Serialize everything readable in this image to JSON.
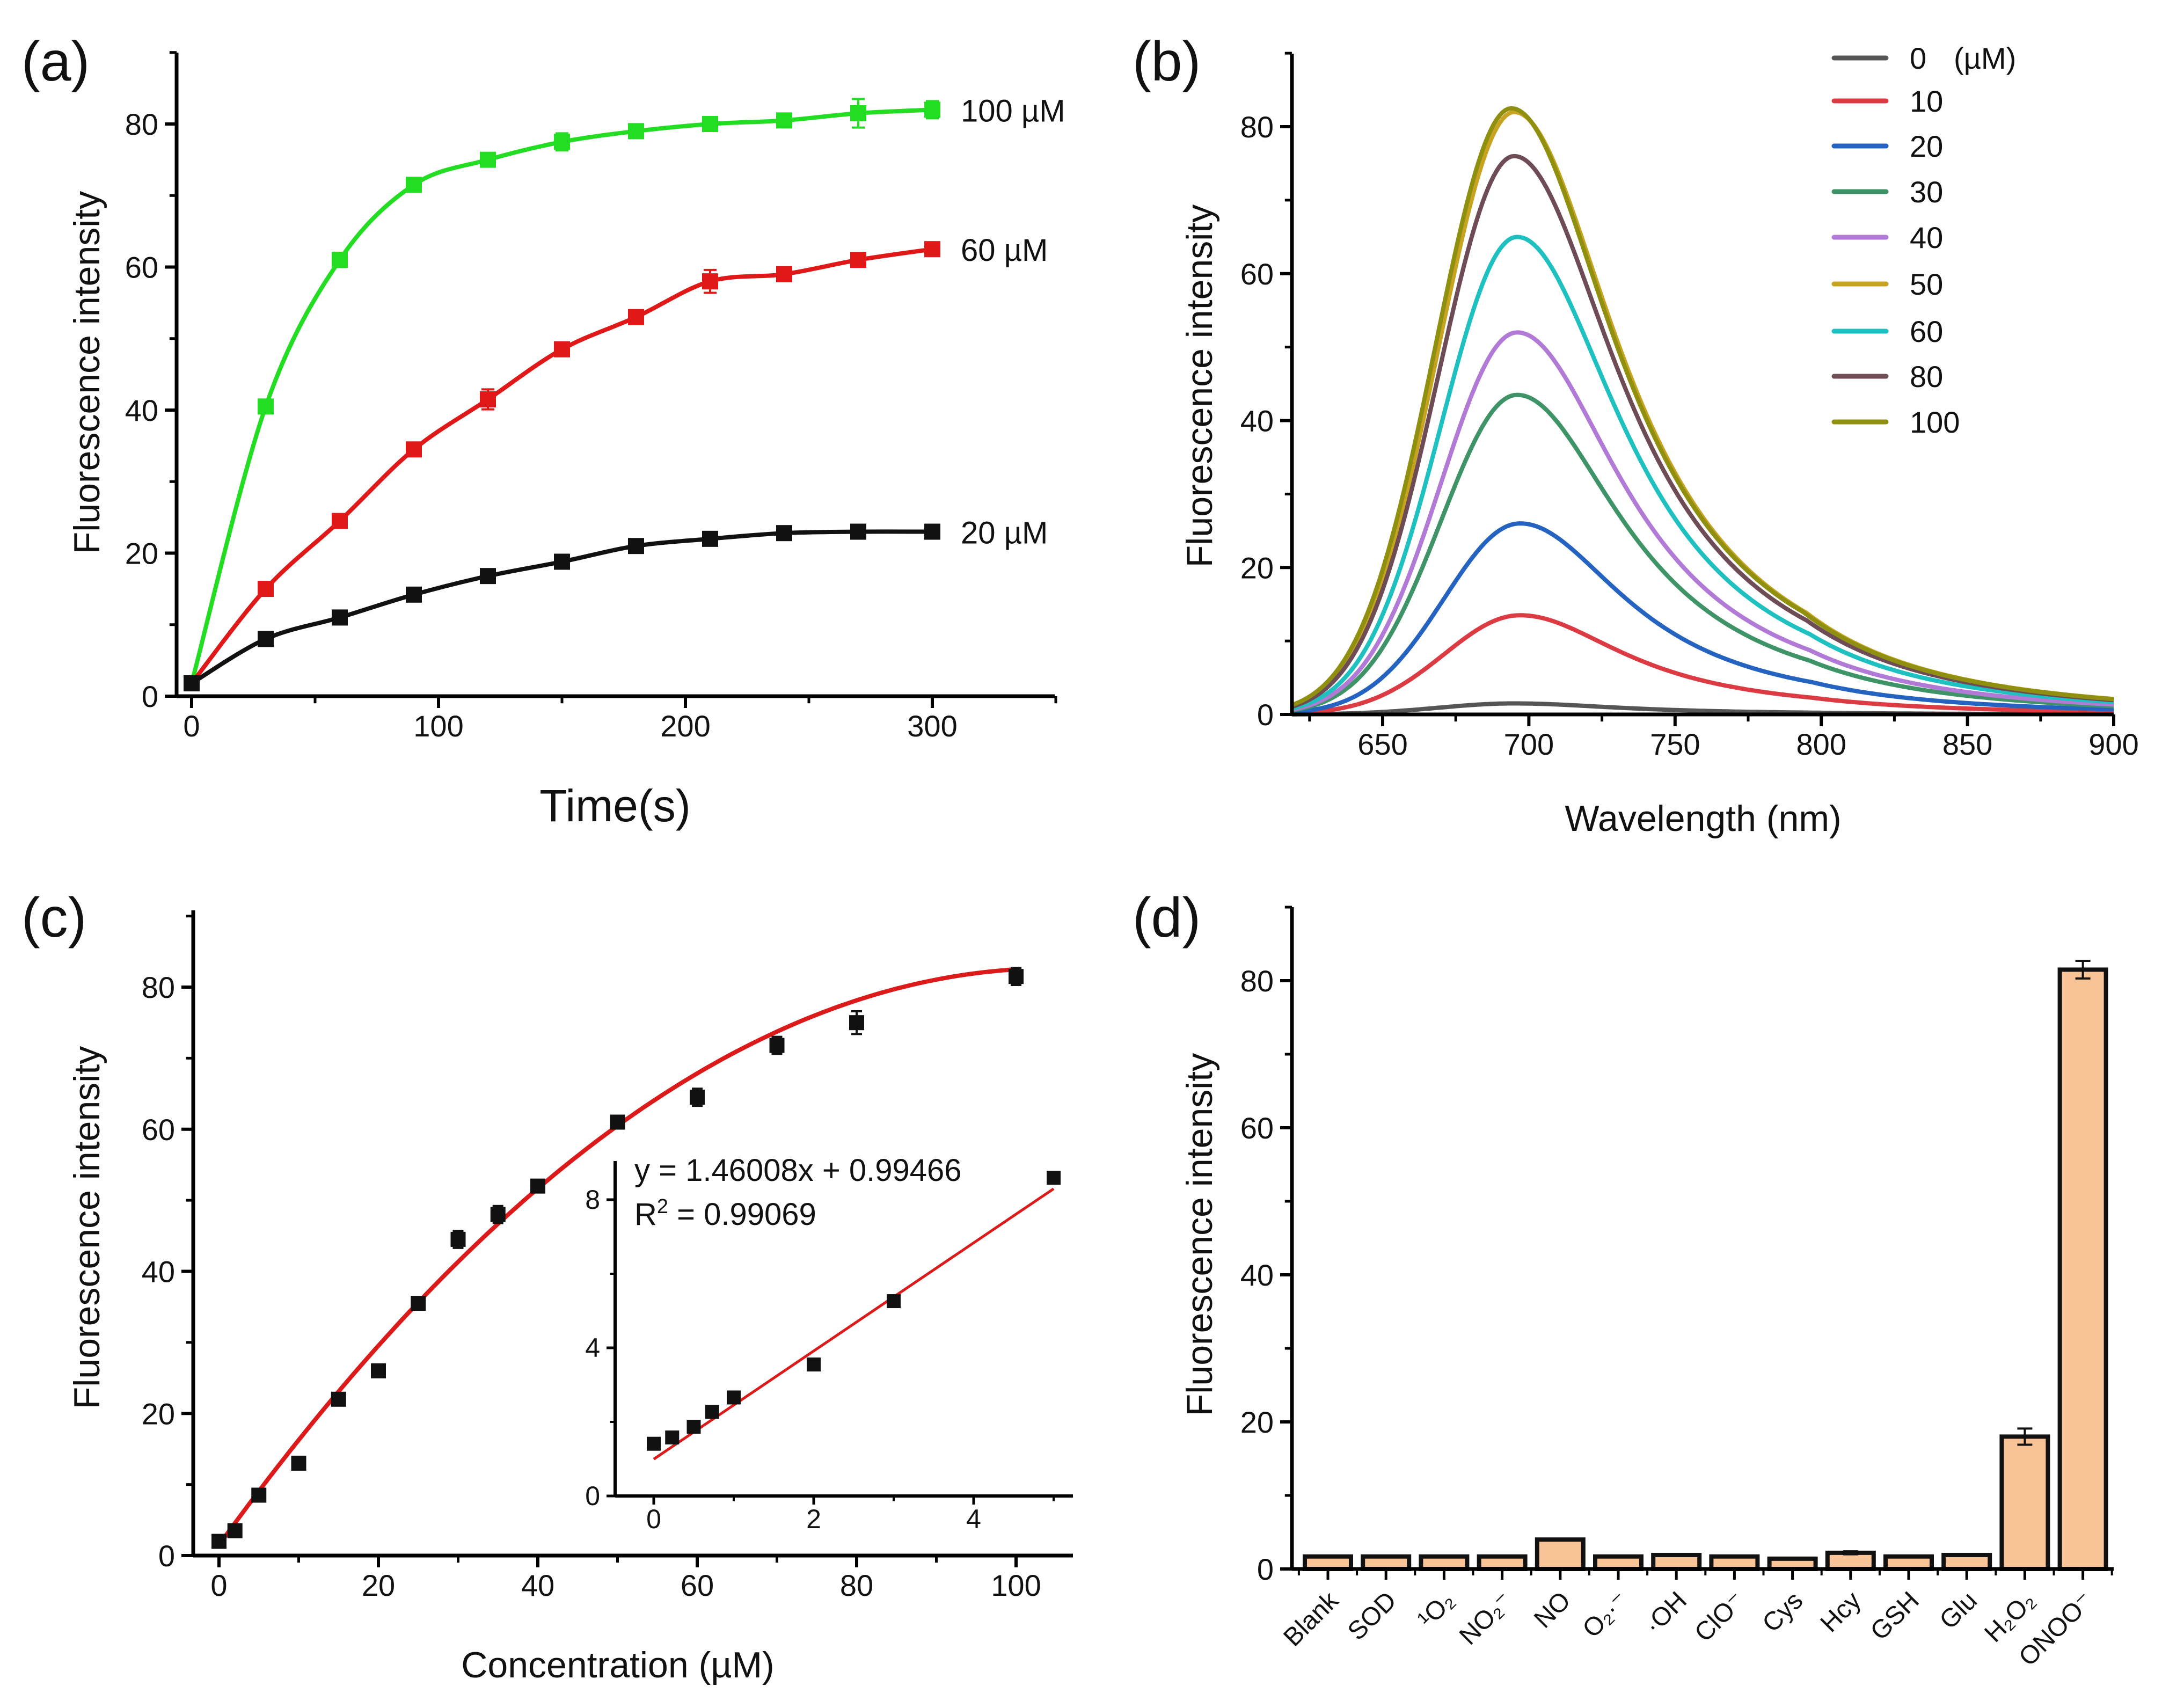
{
  "chart_data": [
    {
      "id": "a",
      "panel_label": "(a)",
      "type": "line",
      "xlabel": "Time(s)",
      "ylabel": "Fluorescence intensity",
      "xlim": [
        -6,
        350
      ],
      "ylim": [
        0,
        90
      ],
      "xticks": [
        0,
        100,
        200,
        300
      ],
      "yticks": [
        0,
        20,
        40,
        60,
        80
      ],
      "x": [
        0,
        30,
        60,
        90,
        120,
        150,
        180,
        210,
        240,
        270,
        300
      ],
      "series": [
        {
          "name": "100 µM",
          "color": "#22dd22",
          "values": [
            1.8,
            40.5,
            61,
            71.5,
            75,
            77.5,
            79,
            80,
            80.5,
            81.5,
            82
          ],
          "errors": [
            0.3,
            0.6,
            1,
            0.8,
            0.6,
            1.2,
            0.8,
            0.6,
            0.6,
            2,
            1.2
          ]
        },
        {
          "name": "60 µM",
          "color": "#e01818",
          "values": [
            1.8,
            15,
            24.5,
            34.5,
            41.5,
            48.5,
            53,
            58,
            59,
            61,
            62.5
          ],
          "errors": [
            0.3,
            0.8,
            0.8,
            0.8,
            1.4,
            0.8,
            0.6,
            1.6,
            0.6,
            0.6,
            0.6
          ]
        },
        {
          "name": "20 µM",
          "color": "#111111",
          "values": [
            1.8,
            8,
            11,
            14.2,
            16.8,
            18.8,
            21,
            22,
            22.8,
            23,
            23
          ],
          "errors": [
            0.3,
            0.5,
            0.5,
            0.5,
            0.5,
            0.5,
            0.5,
            0.6,
            0.5,
            0.5,
            0.5
          ]
        }
      ]
    },
    {
      "id": "b",
      "panel_label": "(b)",
      "type": "line",
      "xlabel": "Wavelength (nm)",
      "ylabel": "Fluorescence intensity",
      "xlim": [
        619,
        900
      ],
      "ylim": [
        0,
        90
      ],
      "xticks": [
        650,
        700,
        750,
        800,
        850,
        900
      ],
      "yticks": [
        0,
        20,
        40,
        60,
        80
      ],
      "legend_position": "top-right",
      "legend_unit": "(µM)",
      "series": [
        {
          "name": "0",
          "color": "#555555",
          "peak_wavelength": 695,
          "peak_intensity": 1.5
        },
        {
          "name": "10",
          "color": "#dd3b44",
          "peak_wavelength": 697,
          "peak_intensity": 13.5
        },
        {
          "name": "20",
          "color": "#2463c0",
          "peak_wavelength": 697,
          "peak_intensity": 26
        },
        {
          "name": "30",
          "color": "#3e9467",
          "peak_wavelength": 696,
          "peak_intensity": 43.5
        },
        {
          "name": "40",
          "color": "#b07ad6",
          "peak_wavelength": 696,
          "peak_intensity": 52
        },
        {
          "name": "50",
          "color": "#c6a320",
          "peak_wavelength": 695,
          "peak_intensity": 82
        },
        {
          "name": "60",
          "color": "#1fc0c0",
          "peak_wavelength": 696,
          "peak_intensity": 65
        },
        {
          "name": "80",
          "color": "#6e4c55",
          "peak_wavelength": 695,
          "peak_intensity": 76
        },
        {
          "name": "100",
          "color": "#8f8f10",
          "peak_wavelength": 694,
          "peak_intensity": 82.5
        }
      ]
    },
    {
      "id": "c",
      "panel_label": "(c)",
      "type": "scatter",
      "xlabel": "Concentration (µM)",
      "ylabel": "Fluorescence intensity",
      "xlim": [
        -3.3,
        107
      ],
      "ylim": [
        0,
        91
      ],
      "xticks": [
        0,
        20,
        40,
        60,
        80,
        100
      ],
      "yticks": [
        0,
        20,
        40,
        60,
        80
      ],
      "x": [
        0,
        2,
        5,
        10,
        15,
        20,
        25,
        30,
        35,
        40,
        50,
        60,
        70,
        80,
        100
      ],
      "values": [
        2,
        3.5,
        8.5,
        13,
        22,
        26,
        35.5,
        44.5,
        48,
        52,
        61,
        64.5,
        71.8,
        75,
        81.5
      ],
      "errors": [
        0.4,
        0.4,
        0.5,
        0.8,
        0.6,
        0.5,
        0.6,
        1.2,
        1.2,
        0.8,
        0.6,
        1.2,
        1.2,
        1.6,
        1.2
      ],
      "fit_color": "#dd1a1a",
      "fit_quadratic": [
        1.5,
        1.55,
        -0.0074
      ],
      "inset": {
        "xlim": [
          -0.48,
          5.24
        ],
        "ylim": [
          0,
          9
        ],
        "xticks": [
          0,
          2,
          4
        ],
        "yticks": [
          0,
          4,
          8
        ],
        "x": [
          0,
          0.23,
          0.5,
          0.73,
          1,
          2,
          3,
          5
        ],
        "values": [
          1.41,
          1.58,
          1.87,
          2.27,
          2.66,
          3.55,
          5.26,
          8.59
        ],
        "slope": 1.46008,
        "intercept": 0.99466,
        "equation": "y = 1.46008x + 0.99466",
        "r2_prefix": "R",
        "r2_sup": "2",
        "r2_value": " = 0.99069"
      }
    },
    {
      "id": "d",
      "panel_label": "(d)",
      "type": "bar",
      "xlabel": "",
      "ylabel": "Fluorescence intensity",
      "ylim": [
        0,
        90
      ],
      "yticks": [
        0,
        20,
        40,
        60,
        80
      ],
      "bar_color": "#f8c498",
      "categories": [
        "Blank",
        "SOD",
        "¹O₂",
        "NO₂⁻",
        "NO",
        "O₂·⁻",
        "·OH",
        "ClO⁻",
        "Cys",
        "Hcy",
        "GSH",
        "Glu",
        "H₂O₂",
        "ONOO⁻"
      ],
      "values": [
        1.7,
        1.7,
        1.7,
        1.7,
        4,
        1.7,
        1.9,
        1.7,
        1.4,
        2.2,
        1.7,
        1.9,
        18,
        81.5
      ],
      "errors": [
        0,
        0,
        0,
        0,
        0,
        0,
        0,
        0,
        0,
        0.2,
        0,
        0,
        1.1,
        1.2
      ]
    }
  ]
}
